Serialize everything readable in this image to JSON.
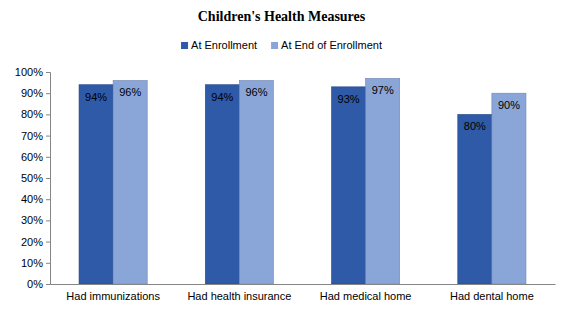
{
  "chart_data": {
    "type": "bar",
    "title": "Children's Health Measures",
    "categories": [
      "Had immunizations",
      "Had health insurance",
      "Had medical home",
      "Had dental home"
    ],
    "series": [
      {
        "name": "At Enrollment",
        "color": "#2e5aa8",
        "values": [
          94,
          94,
          93,
          80
        ],
        "value_labels": [
          "94%",
          "94%",
          "93%",
          "80%"
        ]
      },
      {
        "name": "At End of Enrollment",
        "color": "#8aa6d8",
        "values": [
          96,
          96,
          97,
          90
        ],
        "value_labels": [
          "96%",
          "96%",
          "97%",
          "90%"
        ]
      }
    ],
    "ylim": [
      0,
      100
    ],
    "yticks": [
      {
        "value": 0,
        "label": "0%"
      },
      {
        "value": 10,
        "label": "10%"
      },
      {
        "value": 20,
        "label": "20%"
      },
      {
        "value": 30,
        "label": "30%"
      },
      {
        "value": 40,
        "label": "40%"
      },
      {
        "value": 50,
        "label": "50%"
      },
      {
        "value": 60,
        "label": "60%"
      },
      {
        "value": 70,
        "label": "70%"
      },
      {
        "value": 80,
        "label": "80%"
      },
      {
        "value": 90,
        "label": "90%"
      },
      {
        "value": 100,
        "label": "100%"
      }
    ],
    "grid": false,
    "legend": "top",
    "data_labels": true
  }
}
